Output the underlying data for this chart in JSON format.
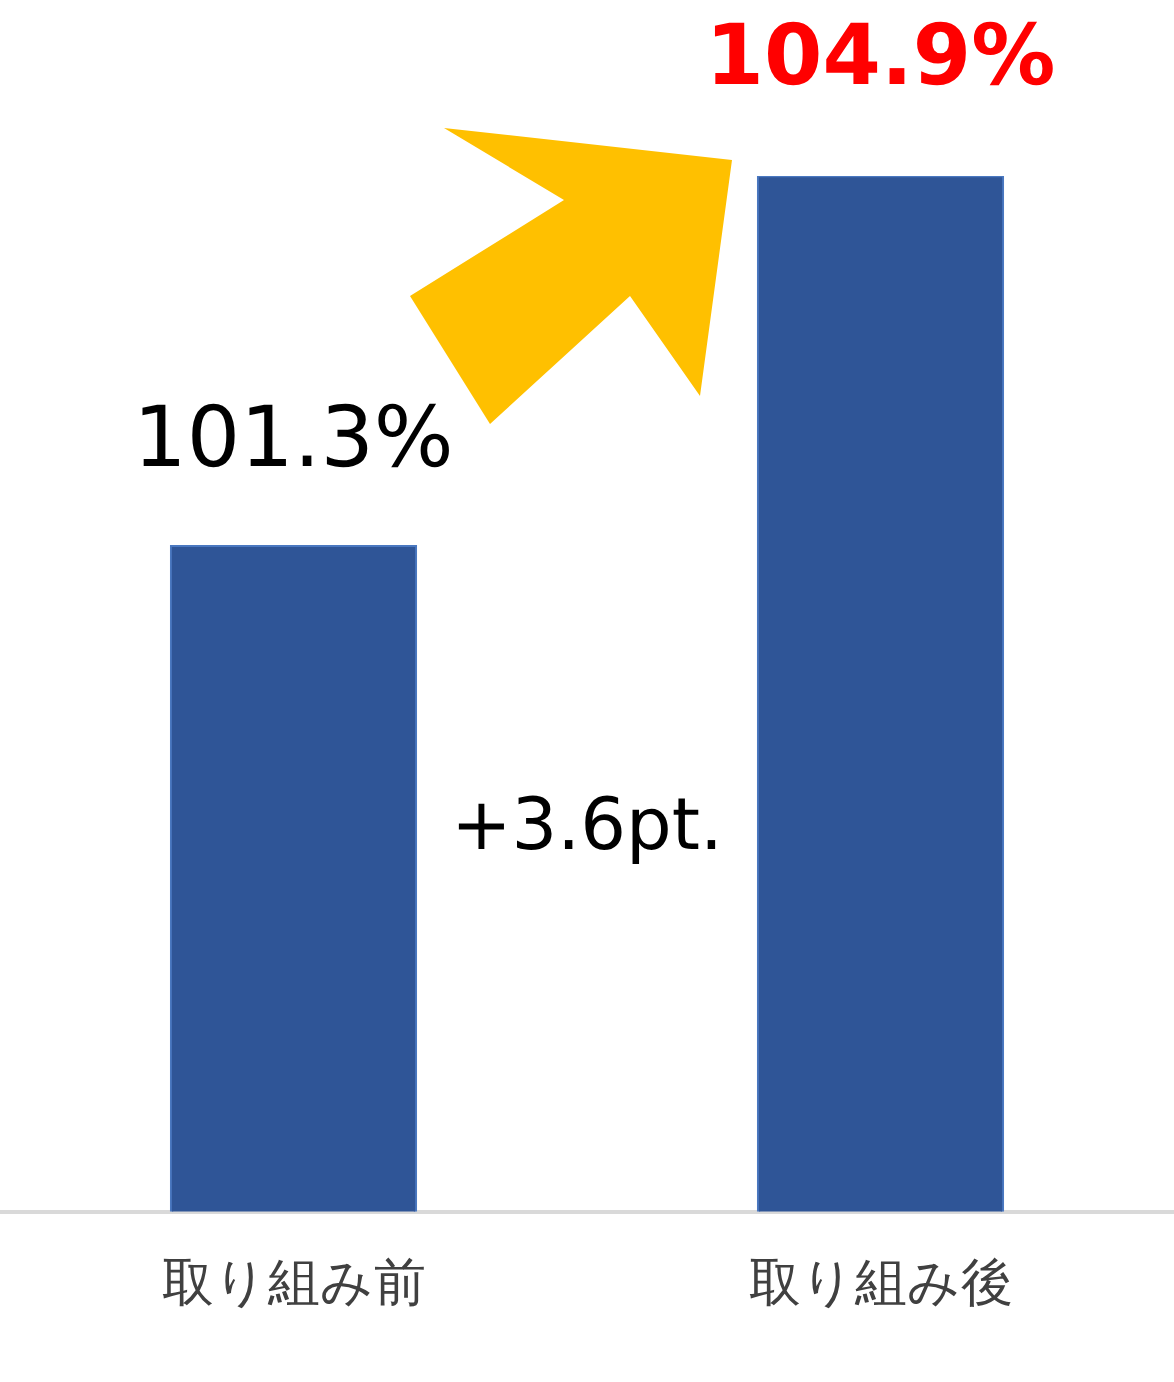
{
  "chart_data": {
    "type": "bar",
    "categories": [
      "取り組み前",
      "取り組み後"
    ],
    "values": [
      101.3,
      104.9
    ],
    "value_labels": [
      "101.3%",
      "104.9%"
    ],
    "color": "#2f5597",
    "tick_labels": "x",
    "grid": false,
    "legend": false,
    "annotations": [
      "+3.6pt."
    ]
  }
}
